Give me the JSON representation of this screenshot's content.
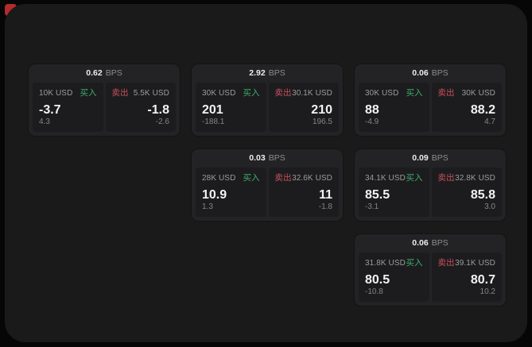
{
  "labels": {
    "bps": "BPS",
    "buy": "买入",
    "sell": "卖出"
  },
  "colors": {
    "outer_bg": "#060607",
    "panel_bg": "#1a1a1b",
    "card_bg": "#232325",
    "tile_bg": "#1c1c1e",
    "buy_green": "#3fae6c",
    "sell_red": "#c94f5e",
    "indicator_red": "#b42b2b",
    "primary_text": "#f2f2f2",
    "secondary_text": "#9c9c9c"
  },
  "cards": [
    {
      "bps": "0.62",
      "buy": {
        "notional": "10K USD",
        "price": "-3.7",
        "delta": "4.3"
      },
      "sell": {
        "notional": "5.5K USD",
        "price": "-1.8",
        "delta": "-2.6"
      }
    },
    {
      "bps": "2.92",
      "buy": {
        "notional": "30K USD",
        "price": "201",
        "delta": "-188.1"
      },
      "sell": {
        "notional": "30.1K USD",
        "price": "210",
        "delta": "196.5"
      }
    },
    {
      "bps": "0.06",
      "buy": {
        "notional": "30K USD",
        "price": "88",
        "delta": "-4.9"
      },
      "sell": {
        "notional": "30K USD",
        "price": "88.2",
        "delta": "4.7"
      }
    },
    {
      "bps": "0.03",
      "buy": {
        "notional": "28K USD",
        "price": "10.9",
        "delta": "1.3"
      },
      "sell": {
        "notional": "32.6K USD",
        "price": "11",
        "delta": "-1.8"
      }
    },
    {
      "bps": "0.09",
      "buy": {
        "notional": "34.1K USD",
        "price": "85.5",
        "delta": "-3.1"
      },
      "sell": {
        "notional": "32.8K USD",
        "price": "85.8",
        "delta": "3.0"
      }
    },
    {
      "bps": "0.06",
      "buy": {
        "notional": "31.8K USD",
        "price": "80.5",
        "delta": "-10.8"
      },
      "sell": {
        "notional": "39.1K USD",
        "price": "80.7",
        "delta": "10.2"
      }
    }
  ]
}
